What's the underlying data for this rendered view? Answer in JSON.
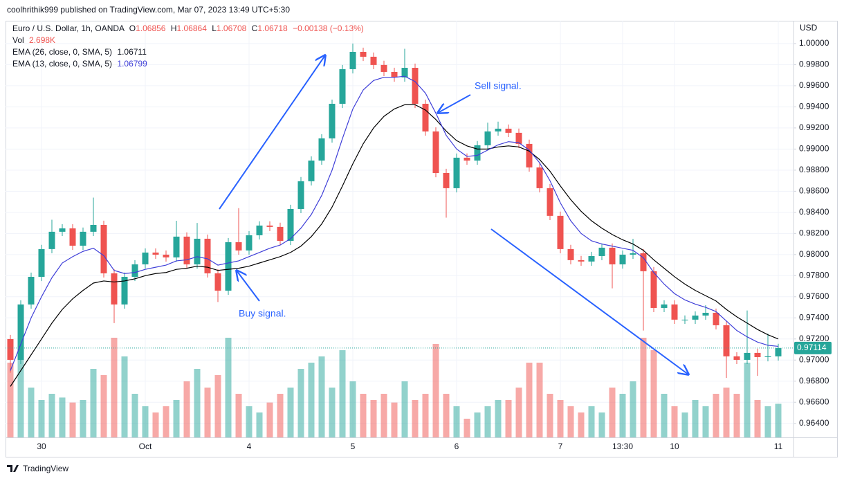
{
  "page": {
    "attribution": "coolhrithik999 published on TradingView.com, Mar 07, 2023 13:49 UTC+5:30",
    "brand": "TradingView"
  },
  "chart_data": {
    "type": "candlestick",
    "legend": {
      "symbol": "Euro / U.S. Dollar, 1h, OANDA",
      "ohlc": [
        "O",
        "1.06856",
        "H",
        "1.06864",
        "L",
        "1.06708",
        "C",
        "1.06718",
        "−0.00138 (−0.13%)"
      ]
    },
    "axis_unit": "USD",
    "annotations": [
      "Buy signal.",
      "Sell signal."
    ],
    "up_color": "#26a69a",
    "down_color": "#ef5350",
    "grid": true,
    "ylim": [
      0.96267,
      1.00216
    ],
    "yticks": [
      {
        "value": 0.964,
        "label": "0.96400"
      },
      {
        "value": 0.966,
        "label": "0.96600"
      },
      {
        "value": 0.968,
        "label": "0.96800"
      },
      {
        "value": 0.97,
        "label": "0.97000"
      },
      {
        "value": 0.972,
        "label": "0.97200"
      },
      {
        "value": 0.974,
        "label": "0.97400"
      },
      {
        "value": 0.976,
        "label": "0.97600"
      },
      {
        "value": 0.978,
        "label": "0.97800"
      },
      {
        "value": 0.98,
        "label": "0.98000"
      },
      {
        "value": 0.982,
        "label": "0.98200"
      },
      {
        "value": 0.984,
        "label": "0.98400"
      },
      {
        "value": 0.986,
        "label": "0.98600"
      },
      {
        "value": 0.988,
        "label": "0.98800"
      },
      {
        "value": 0.99,
        "label": "0.99000"
      },
      {
        "value": 0.992,
        "label": "0.99200"
      },
      {
        "value": 0.994,
        "label": "0.99400"
      },
      {
        "value": 0.996,
        "label": "0.99600"
      },
      {
        "value": 0.998,
        "label": "0.99800"
      },
      {
        "value": 1.0,
        "label": "1.00000"
      }
    ],
    "categories": [
      null,
      null,
      null,
      "30",
      null,
      null,
      null,
      null,
      null,
      null,
      null,
      null,
      null,
      "Oct",
      null,
      null,
      null,
      null,
      null,
      null,
      null,
      null,
      null,
      "4",
      null,
      null,
      null,
      null,
      null,
      null,
      null,
      null,
      null,
      "5",
      null,
      null,
      null,
      null,
      null,
      null,
      null,
      null,
      null,
      "6",
      null,
      null,
      null,
      null,
      null,
      null,
      null,
      null,
      null,
      "7",
      null,
      null,
      null,
      null,
      null,
      "13:30",
      null,
      null,
      null,
      null,
      "10",
      null,
      null,
      null,
      null,
      null,
      null,
      null,
      null,
      null,
      "11"
    ],
    "open": [
      0.97199,
      0.97002,
      0.97527,
      0.97789,
      0.98052,
      0.98216,
      0.98248,
      0.98084,
      0.98216,
      0.98281,
      0.97822,
      0.97527,
      0.97789,
      0.97907,
      0.98019,
      0.97999,
      0.97973,
      0.9817,
      0.97907,
      0.9815,
      0.97822,
      0.97658,
      0.98117,
      0.98039,
      0.98183,
      0.98275,
      0.98262,
      0.9813,
      0.98432,
      0.98695,
      0.98891,
      0.99101,
      0.99429,
      0.99757,
      0.99921,
      0.99875,
      0.99797,
      0.99731,
      0.99679,
      0.9977,
      0.99429,
      0.99167,
      0.98773,
      0.98629,
      0.98918,
      0.98891,
      0.99036,
      0.99167,
      0.99193,
      0.99154,
      0.99049,
      0.98826,
      0.98629,
      0.98367,
      0.98052,
      0.97947,
      0.97934,
      0.97986,
      0.98065,
      0.97907,
      0.97999,
      0.98012,
      0.97842,
      0.97494,
      0.97527,
      0.97383,
      0.97383,
      0.97422,
      0.97448,
      0.9733,
      0.97035,
      0.97002,
      0.97068,
      0.97028,
      0.97035
    ],
    "high": [
      0.97239,
      0.97567,
      0.97829,
      0.98092,
      0.9833,
      0.98288,
      0.98288,
      0.98256,
      0.9854,
      0.98321,
      0.97862,
      0.97829,
      0.97947,
      0.98059,
      0.98059,
      0.98039,
      0.9832,
      0.9821,
      0.983,
      0.9819,
      0.97862,
      0.98157,
      0.9844,
      0.98223,
      0.98315,
      0.98315,
      0.98302,
      0.98472,
      0.98735,
      0.98931,
      0.99141,
      0.99469,
      0.99797,
      1.0,
      0.99961,
      0.99915,
      0.99837,
      0.99771,
      0.9995,
      0.9981,
      0.99469,
      0.99207,
      0.98813,
      0.98958,
      0.98958,
      0.99076,
      0.9925,
      0.9926,
      0.99233,
      0.99194,
      0.99089,
      0.98866,
      0.98669,
      0.98407,
      0.98092,
      0.97987,
      0.98026,
      0.98105,
      0.98105,
      0.98039,
      0.9815,
      0.98052,
      0.97882,
      0.97567,
      0.97567,
      0.97423,
      0.97462,
      0.9752,
      0.97488,
      0.9737,
      0.97075,
      0.9747,
      0.97108,
      0.9725,
      0.97154
    ],
    "low": [
      0.9688,
      0.96962,
      0.97487,
      0.97749,
      0.98012,
      0.98176,
      0.98044,
      0.98044,
      0.98176,
      0.97782,
      0.9735,
      0.97487,
      0.97749,
      0.97867,
      0.97959,
      0.97933,
      0.97933,
      0.97867,
      0.97867,
      0.97782,
      0.9755,
      0.97618,
      0.97999,
      0.97999,
      0.98143,
      0.98222,
      0.9809,
      0.9809,
      0.98392,
      0.98655,
      0.98851,
      0.99061,
      0.99389,
      0.99717,
      0.99835,
      0.99757,
      0.99691,
      0.99639,
      0.99639,
      0.99389,
      0.99127,
      0.98733,
      0.9835,
      0.98589,
      0.98851,
      0.98851,
      0.98996,
      0.99127,
      0.99114,
      0.99009,
      0.98786,
      0.98589,
      0.98327,
      0.98012,
      0.97907,
      0.97894,
      0.97894,
      0.97946,
      0.9768,
      0.97867,
      0.97959,
      0.9728,
      0.97454,
      0.97454,
      0.97343,
      0.97343,
      0.97343,
      0.97382,
      0.9729,
      0.9683,
      0.96962,
      0.96962,
      0.9685,
      0.96988,
      0.96995
    ],
    "close": [
      0.97002,
      0.97527,
      0.97789,
      0.98052,
      0.98216,
      0.98248,
      0.98084,
      0.98216,
      0.98281,
      0.97822,
      0.97527,
      0.97789,
      0.97907,
      0.98019,
      0.97999,
      0.97973,
      0.9817,
      0.97907,
      0.9815,
      0.97822,
      0.97658,
      0.98117,
      0.98039,
      0.98183,
      0.98275,
      0.98262,
      0.9813,
      0.98432,
      0.98695,
      0.98891,
      0.99101,
      0.99429,
      0.99757,
      0.99921,
      0.99875,
      0.99797,
      0.99731,
      0.99679,
      0.9977,
      0.99429,
      0.99167,
      0.98773,
      0.98629,
      0.98918,
      0.98891,
      0.99036,
      0.99167,
      0.99193,
      0.99154,
      0.99049,
      0.98826,
      0.98629,
      0.98367,
      0.98052,
      0.97947,
      0.97934,
      0.97986,
      0.98065,
      0.97907,
      0.97999,
      0.98012,
      0.97842,
      0.97494,
      0.97527,
      0.97383,
      0.97383,
      0.97422,
      0.97448,
      0.9733,
      0.97035,
      0.97002,
      0.97068,
      0.97028,
      0.97035,
      0.97114
    ],
    "volume": {
      "name": "Vol",
      "legend_value": "2.698K",
      "values": [
        6.0,
        7.5,
        4.0,
        3.0,
        3.5,
        3.2,
        2.8,
        3.0,
        5.5,
        5.0,
        8.0,
        6.5,
        3.5,
        2.5,
        2.0,
        2.5,
        3.0,
        4.5,
        5.5,
        4.0,
        5.0,
        8.0,
        3.5,
        2.5,
        2.0,
        2.8,
        3.5,
        4.0,
        5.5,
        6.0,
        6.5,
        4.0,
        7.0,
        4.5,
        3.5,
        3.0,
        3.5,
        2.8,
        4.5,
        3.0,
        3.5,
        7.5,
        3.5,
        2.5,
        1.5,
        2.0,
        2.5,
        3.0,
        3.0,
        4.0,
        6.0,
        6.0,
        3.5,
        3.0,
        2.5,
        2.0,
        2.5,
        2.0,
        4.0,
        3.5,
        4.5,
        8.0,
        7.0,
        3.5,
        2.5,
        2.0,
        3.0,
        2.5,
        3.5,
        4.0,
        3.5,
        6.0,
        3.0,
        2.5,
        2.698
      ]
    },
    "series": [
      {
        "name": "EMA (26, close, 0, SMA, 5)",
        "color": "#000000",
        "legend_value": "1.06711",
        "values": [
          0.9675,
          0.969,
          0.9705,
          0.972,
          0.9735,
          0.9748,
          0.9758,
          0.9766,
          0.9773,
          0.9775,
          0.9774,
          0.9775,
          0.9777,
          0.978,
          0.9782,
          0.9783,
          0.9786,
          0.9787,
          0.9789,
          0.9788,
          0.9785,
          0.9786,
          0.9787,
          0.9789,
          0.9792,
          0.9795,
          0.9798,
          0.9802,
          0.9808,
          0.9817,
          0.9829,
          0.9845,
          0.9865,
          0.9886,
          0.9905,
          0.992,
          0.9931,
          0.9938,
          0.9942,
          0.9942,
          0.9937,
          0.9928,
          0.9917,
          0.9908,
          0.9903,
          0.99,
          0.99,
          0.9902,
          0.9903,
          0.9902,
          0.9898,
          0.989,
          0.9879,
          0.9865,
          0.9852,
          0.9841,
          0.9832,
          0.9825,
          0.9819,
          0.9814,
          0.981,
          0.9804,
          0.9795,
          0.9787,
          0.9779,
          0.9772,
          0.9766,
          0.9761,
          0.9756,
          0.9748,
          0.9741,
          0.9735,
          0.9729,
          0.9724,
          0.972
        ]
      },
      {
        "name": "EMA (13, close, 0, SMA, 5)",
        "color": "#3f3fd8",
        "legend_value": "1.06799",
        "values": [
          0.969,
          0.9715,
          0.974,
          0.976,
          0.9778,
          0.9792,
          0.9798,
          0.9803,
          0.9806,
          0.9799,
          0.9785,
          0.9782,
          0.9783,
          0.9786,
          0.9788,
          0.979,
          0.9794,
          0.9795,
          0.9798,
          0.9796,
          0.979,
          0.9792,
          0.9794,
          0.9798,
          0.9802,
          0.9806,
          0.9809,
          0.9815,
          0.9825,
          0.9838,
          0.9856,
          0.988,
          0.991,
          0.9938,
          0.9956,
          0.9965,
          0.9968,
          0.9968,
          0.9969,
          0.9964,
          0.9953,
          0.9934,
          0.9913,
          0.99,
          0.9893,
          0.9894,
          0.9899,
          0.9904,
          0.9907,
          0.9906,
          0.9899,
          0.9887,
          0.987,
          0.9849,
          0.9832,
          0.982,
          0.9813,
          0.981,
          0.9808,
          0.9806,
          0.9804,
          0.9797,
          0.9783,
          0.9772,
          0.9763,
          0.9757,
          0.9753,
          0.975,
          0.9746,
          0.9737,
          0.9728,
          0.9722,
          0.9717,
          0.9714,
          0.9713
        ]
      }
    ]
  }
}
